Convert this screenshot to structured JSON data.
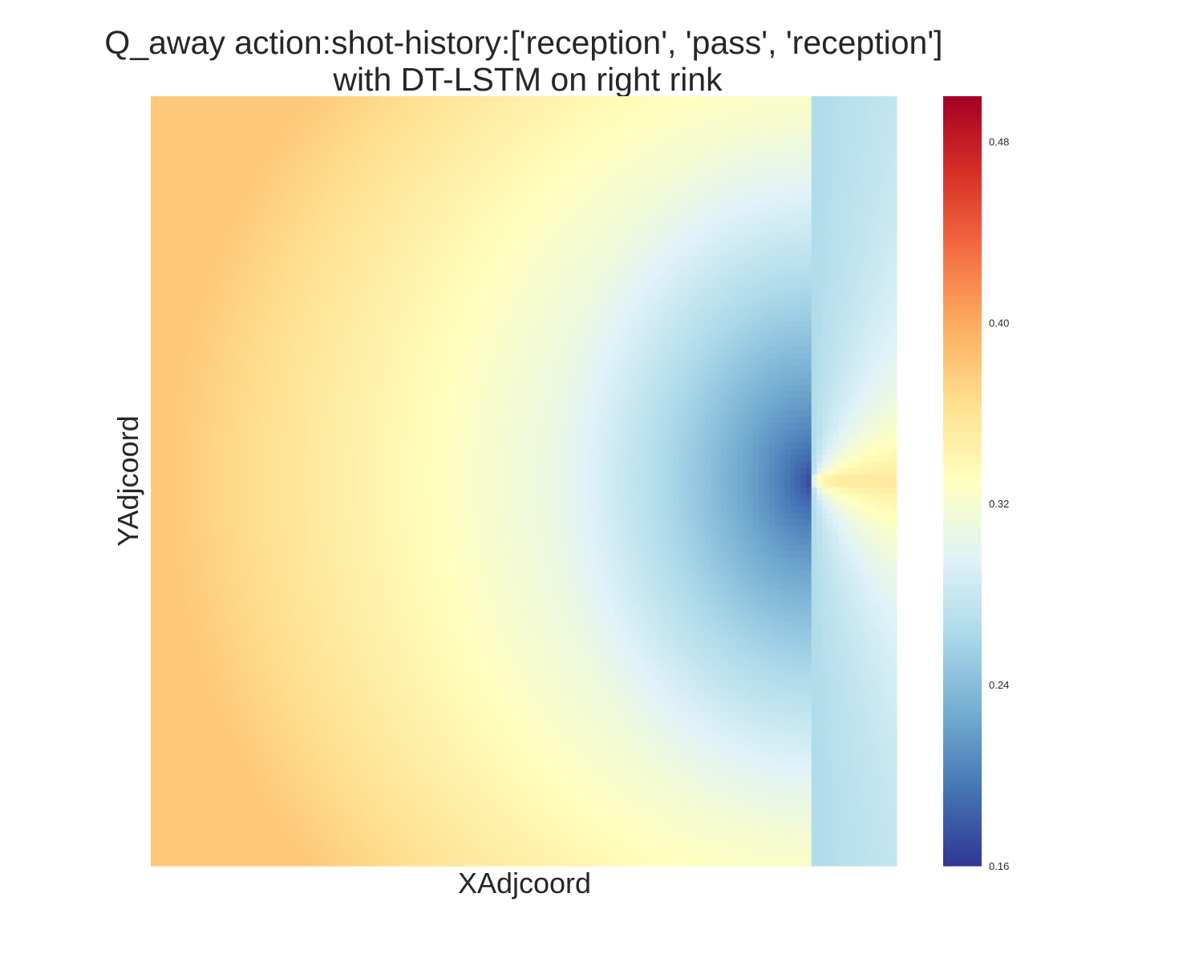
{
  "chart_data": {
    "type": "heatmap",
    "title_lines": [
      "Q_away action:shot-history:['reception', 'pass', 'reception']",
      "with DT-LSTM on right rink"
    ],
    "xlabel": "XAdjcoord",
    "ylabel": "YAdjcoord",
    "colormap": "RdYlBu_r",
    "colorbar": {
      "vmin": 0.16,
      "vmax": 0.5,
      "ticks": [
        0.16,
        0.24,
        0.32,
        0.4,
        0.48
      ],
      "tick_labels": [
        "0.16",
        "0.24",
        "0.32",
        "0.40",
        "0.48"
      ]
    },
    "value_field": {
      "description_points": [
        {
          "region": "left edge corners",
          "value": 0.37
        },
        {
          "region": "left edge center",
          "value": 0.33
        },
        {
          "region": "mid field",
          "value": 0.27
        },
        {
          "region": "near net minimum",
          "value": 0.165
        },
        {
          "region": "behind net center",
          "value": 0.35
        },
        {
          "region": "right edge corners",
          "value": 0.27
        }
      ],
      "grid_cols": 140,
      "grid_rows": 120
    }
  }
}
